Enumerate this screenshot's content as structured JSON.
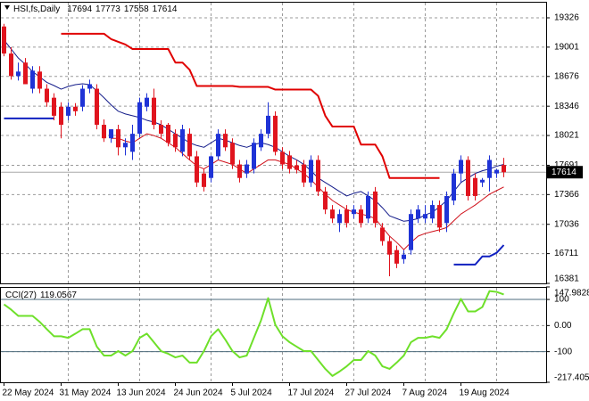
{
  "chart_data": [
    {
      "type": "candlestick",
      "title": "HSI,fs,Daily",
      "categories": [
        "22 May 2024",
        null,
        null,
        null,
        null,
        null,
        null,
        null,
        "31 May 2024",
        null,
        null,
        null,
        null,
        null,
        null,
        null,
        "13 Jun 2024",
        null,
        null,
        null,
        null,
        null,
        null,
        null,
        "24 Jun 2024",
        null,
        null,
        null,
        null,
        null,
        null,
        null,
        "5 Jul 2024",
        null,
        null,
        null,
        null,
        null,
        null,
        null,
        "17 Jul 2024",
        null,
        null,
        null,
        null,
        null,
        null,
        null,
        "27 Jul 2024",
        null,
        null,
        null,
        null,
        null,
        null,
        null,
        "7 Aug 2024",
        null,
        null,
        null,
        null,
        null,
        null,
        null,
        "19 Aug 2024",
        null,
        null,
        null,
        null,
        null,
        null
      ],
      "open": [
        19230,
        18930,
        18680,
        18830,
        18540,
        18730,
        18540,
        18440,
        18340,
        18240,
        18340,
        18340,
        18540,
        18540,
        18140,
        17990,
        18090,
        17890,
        17840,
        18040,
        18340,
        18440,
        18140,
        18140,
        18040,
        17840,
        18040,
        17790,
        17600,
        17550,
        17790,
        18040,
        17940,
        17700,
        17600,
        17650,
        17890,
        18040,
        18240,
        17840,
        17800,
        17690,
        17700,
        17500,
        17750,
        17400,
        17200,
        17050,
        17200,
        17150,
        17200,
        17100,
        17400,
        17000,
        16850,
        16750,
        16650,
        16750,
        17100,
        17100,
        17100,
        17250,
        17050,
        17300,
        17600,
        17750,
        17550,
        17500,
        17550,
        17600,
        17694
      ],
      "high": [
        19260,
        19000,
        18830,
        18880,
        18790,
        18790,
        18590,
        18490,
        18390,
        18390,
        18380,
        18580,
        18640,
        18590,
        18200,
        18090,
        18140,
        17990,
        18140,
        18440,
        18490,
        18540,
        18190,
        18160,
        18090,
        18140,
        18100,
        17850,
        17650,
        17800,
        18090,
        18090,
        17990,
        17750,
        17750,
        17990,
        18090,
        18390,
        18290,
        17890,
        17850,
        17750,
        17750,
        17800,
        17800,
        17450,
        17250,
        17200,
        17250,
        17250,
        17250,
        17400,
        17450,
        17050,
        16900,
        16800,
        16750,
        17200,
        17250,
        17250,
        17300,
        17300,
        17400,
        17650,
        17800,
        17790,
        17600,
        17550,
        17800,
        17650,
        17773
      ],
      "low": [
        18900,
        18640,
        18630,
        18590,
        18490,
        18490,
        18340,
        18190,
        17990,
        18190,
        18240,
        18290,
        18490,
        18090,
        17950,
        17940,
        17800,
        17800,
        17750,
        18000,
        18290,
        18090,
        17990,
        17900,
        17840,
        17790,
        17750,
        17450,
        17400,
        17500,
        17750,
        17850,
        17650,
        17500,
        17550,
        17600,
        17850,
        17990,
        17800,
        17650,
        17600,
        17600,
        17450,
        17450,
        17350,
        17150,
        17050,
        16950,
        17000,
        17100,
        17000,
        17050,
        17000,
        16800,
        16460,
        16550,
        16600,
        16700,
        17050,
        17050,
        17050,
        16950,
        16950,
        17250,
        17500,
        17300,
        17300,
        17450,
        17400,
        17550,
        17558
      ],
      "close": [
        18930,
        18680,
        18730,
        18590,
        18740,
        18540,
        18390,
        18240,
        18140,
        18340,
        18290,
        18540,
        18590,
        18140,
        17990,
        18090,
        17890,
        17940,
        18040,
        18390,
        18440,
        18140,
        18040,
        17940,
        17890,
        18090,
        17790,
        17500,
        17450,
        17790,
        18040,
        17890,
        17700,
        17550,
        17700,
        17940,
        18040,
        18240,
        17840,
        17700,
        17650,
        17640,
        17500,
        17750,
        17400,
        17200,
        17100,
        17150,
        17050,
        17200,
        17050,
        17350,
        17050,
        16850,
        16700,
        16600,
        16700,
        17150,
        17200,
        17150,
        17250,
        17000,
        17350,
        17600,
        17750,
        17350,
        17350,
        17530,
        17750,
        17640,
        17614
      ],
      "up_color": "#1f33d6",
      "down_color": "#e0141e",
      "series": [
        {
          "color": "#141c8a",
          "width": 1,
          "values": [
            19080,
            18980,
            18880,
            18810,
            18730,
            18670,
            18610,
            18575,
            18535,
            18565,
            18585,
            18595,
            18585,
            18515,
            18440,
            18360,
            18290,
            18260,
            18240,
            18220,
            18190,
            18170,
            18140,
            18090,
            18040,
            17990,
            17940,
            17910,
            17890,
            17940,
            17990,
            17970,
            17940,
            17910,
            17890,
            17920,
            17940,
            17920,
            17890,
            17840,
            17790,
            17750,
            17700,
            17630,
            17550,
            17500,
            17450,
            17400,
            17350,
            17380,
            17400,
            17350,
            17300,
            17220,
            17130,
            17100,
            17070,
            17080,
            17100,
            17140,
            17170,
            17230,
            17300,
            17400,
            17500,
            17550,
            17600,
            17630,
            17650,
            17680,
            17700
          ]
        },
        {
          "color": "#d0101a",
          "width": 1,
          "values": [
            null,
            null,
            null,
            null,
            null,
            null,
            null,
            null,
            null,
            null,
            null,
            null,
            null,
            null,
            null,
            17990,
            17990,
            17960,
            17940,
            17990,
            18040,
            18020,
            17990,
            17940,
            17890,
            17820,
            17750,
            17685,
            17650,
            17700,
            17750,
            17725,
            17700,
            17650,
            17600,
            17650,
            17700,
            17750,
            17750,
            17725,
            17700,
            17650,
            17600,
            17530,
            17450,
            17370,
            17300,
            17250,
            17200,
            17170,
            17150,
            17130,
            17100,
            17000,
            16905,
            16835,
            16755,
            16835,
            16905,
            16935,
            16955,
            16975,
            17000,
            17075,
            17150,
            17200,
            17250,
            17310,
            17370,
            17410,
            17450
          ]
        },
        {
          "color": "#e00000",
          "width": 2,
          "values": [
            null,
            null,
            null,
            null,
            null,
            null,
            null,
            null,
            19150,
            19150,
            19150,
            19150,
            19150,
            19150,
            19150,
            19090,
            19060,
            19030,
            18980,
            18980,
            18980,
            18980,
            18980,
            18980,
            18830,
            18830,
            18750,
            18570,
            18570,
            18570,
            18570,
            18570,
            18570,
            18560,
            18560,
            18560,
            18560,
            18560,
            18530,
            18530,
            18530,
            18530,
            18530,
            18530,
            18460,
            18240,
            18120,
            18120,
            18120,
            18120,
            17920,
            17920,
            17920,
            17790,
            17550,
            17550,
            17550,
            17550,
            17550,
            17550,
            17550,
            17550,
            null,
            null,
            null,
            null,
            null,
            null,
            null,
            null,
            null
          ]
        },
        {
          "color": "#1020c0",
          "width": 2,
          "values": [
            18210,
            18210,
            18210,
            18210,
            18210,
            18210,
            18210,
            18210,
            null,
            null,
            null,
            null,
            null,
            null,
            null,
            null,
            null,
            null,
            null,
            null,
            null,
            null,
            null,
            null,
            null,
            null,
            null,
            null,
            null,
            null,
            null,
            null,
            null,
            null,
            null,
            null,
            null,
            null,
            null,
            null,
            null,
            null,
            null,
            null,
            null,
            null,
            null,
            null,
            null,
            null,
            null,
            null,
            null,
            null,
            null,
            null,
            null,
            null,
            null,
            null,
            null,
            null,
            null,
            16590,
            16590,
            16590,
            16590,
            16680,
            16680,
            16720,
            16806
          ]
        }
      ],
      "ylim": [
        16381,
        19504
      ],
      "yticks": [
        16381,
        16711,
        17036,
        17366,
        17691,
        18021,
        18346,
        18676,
        19001,
        19326
      ],
      "grid": true
    },
    {
      "type": "line",
      "series": [
        {
          "name": "CCI(27)",
          "color": "#6ee02a",
          "values": [
            81,
            61,
            37,
            37,
            37,
            14,
            -14,
            -41,
            -41,
            -47,
            -31,
            -14,
            -14,
            -81,
            -115,
            -115,
            -98,
            -115,
            -98,
            -47,
            -31,
            -64,
            -98,
            -108,
            -122,
            -115,
            -142,
            -142,
            -98,
            -41,
            -14,
            -54,
            -98,
            -122,
            -115,
            -47,
            20,
            105,
            3,
            -41,
            -64,
            -81,
            -98,
            -98,
            -132,
            -166,
            -193,
            -176,
            -156,
            -132,
            -132,
            -98,
            -115,
            -156,
            -166,
            -142,
            -115,
            -64,
            -47,
            -47,
            -41,
            -47,
            -14,
            47,
            102,
            54,
            54,
            71,
            132,
            129,
            119.0567
          ]
        }
      ],
      "ylim": [
        -217.405,
        147.9828
      ],
      "yticks": [
        -217.405,
        -100,
        {
          "value": 0,
          "label": "0.00"
        },
        100,
        147.9828
      ],
      "levels": [
        100,
        -100
      ],
      "level_color": "#4d6b7c",
      "grid": true
    }
  ]
}
